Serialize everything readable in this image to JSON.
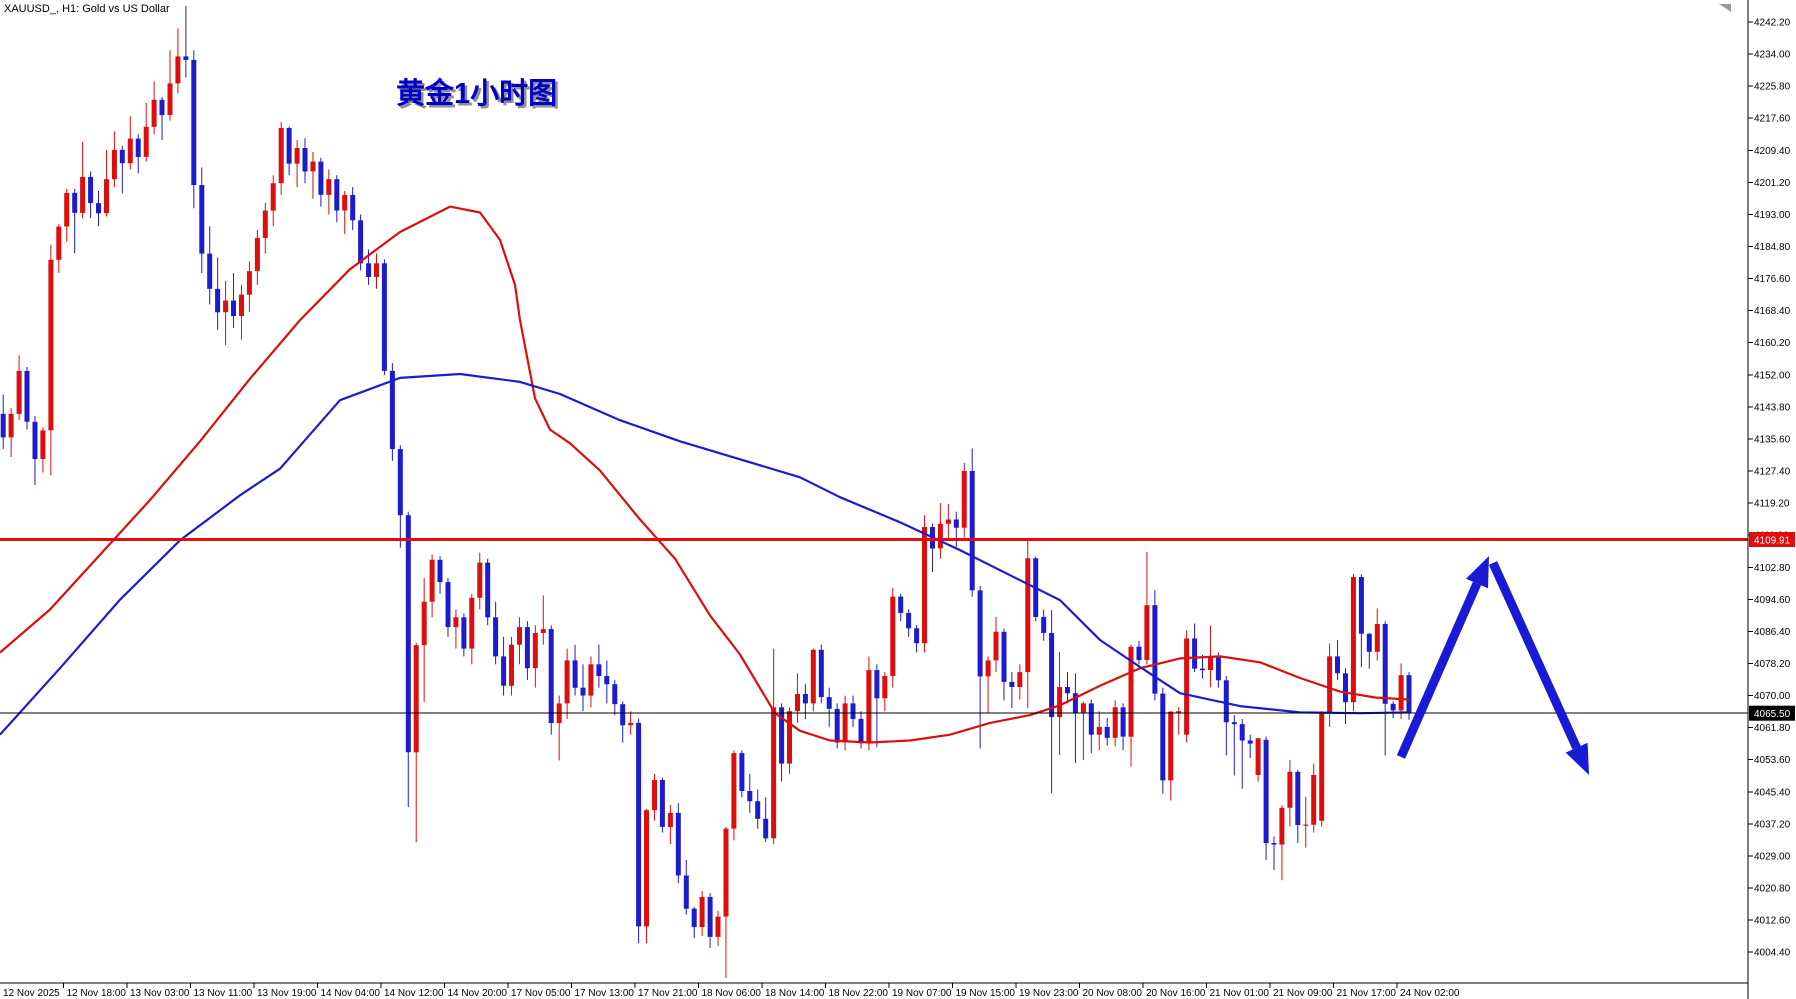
{
  "window": {
    "symbol_title": "XAUUSD_, H1:  Gold vs US Dollar"
  },
  "annotations": {
    "headline": "黄金1小时图",
    "headline_color": "#0000C8",
    "arrow_color": "#1a1ad6",
    "up_arrow": {
      "from": [
        1401,
        757
      ],
      "to": [
        1489,
        556
      ]
    },
    "down_arrow": {
      "from": [
        1493,
        563
      ],
      "to": [
        1589,
        775
      ]
    }
  },
  "price_lines": {
    "resistance": {
      "price": 4109.91,
      "label": "4109.91",
      "color": "#e00d0d"
    },
    "current": {
      "price": 4065.5,
      "label": "4065.50",
      "color": "#000000"
    }
  },
  "chart_data": {
    "type": "candlestick",
    "title": "XAUUSD H1 Gold vs US Dollar",
    "up_color": "#dd0e0e",
    "down_color": "#1c1cce",
    "ma_red_color": "#dd0e0e",
    "ma_blue_color": "#1c1cce",
    "grid": false,
    "y_axis": {
      "top_price": 4242.2,
      "step": 8.2,
      "ticks": [
        "4242.20",
        "4234.00",
        "4225.80",
        "4217.60",
        "4209.40",
        "4201.20",
        "4193.00",
        "4184.80",
        "4176.60",
        "4168.40",
        "4160.20",
        "4152.00",
        "4143.80",
        "4135.60",
        "4127.40",
        "4119.20",
        "4111.00",
        "4102.80",
        "4094.60",
        "4086.40",
        "4078.20",
        "4070.00",
        "4061.80",
        "4053.60",
        "4045.40",
        "4037.20",
        "4029.00",
        "4020.80",
        "4012.60",
        "4004.40"
      ]
    },
    "x_axis": {
      "labels": [
        "12 Nov 2025",
        "12 Nov 18:00",
        "13 Nov 03:00",
        "13 Nov 11:00",
        "13 Nov 19:00",
        "14 Nov 04:00",
        "14 Nov 12:00",
        "14 Nov 20:00",
        "17 Nov 05:00",
        "17 Nov 13:00",
        "17 Nov 21:00",
        "18 Nov 06:00",
        "18 Nov 14:00",
        "18 Nov 22:00",
        "19 Nov 07:00",
        "19 Nov 15:00",
        "19 Nov 23:00",
        "20 Nov 08:00",
        "20 Nov 16:00",
        "21 Nov 01:00",
        "21 Nov 09:00",
        "21 Nov 17:00",
        "24 Nov 02:00"
      ]
    },
    "candles": [
      [
        4142,
        4147,
        4133,
        4136
      ],
      [
        4136,
        4143.5,
        4131,
        4142
      ],
      [
        4142,
        4157,
        4140.5,
        4153
      ],
      [
        4153,
        4154,
        4138,
        4140
      ],
      [
        4140,
        4141.5,
        4123.8,
        4130.5
      ],
      [
        4130.5,
        4138.5,
        4127,
        4137.8
      ],
      [
        4137.8,
        4185.2,
        4126.3,
        4181.4
      ],
      [
        4181.4,
        4190.5,
        4178,
        4189.9
      ],
      [
        4189.9,
        4199.5,
        4186,
        4198.5
      ],
      [
        4198.5,
        4199.5,
        4183.1,
        4193.4
      ],
      [
        4193.4,
        4211.6,
        4192,
        4202.6
      ],
      [
        4202.6,
        4204,
        4192.1,
        4195.9
      ],
      [
        4195.9,
        4199,
        4190,
        4193.3
      ],
      [
        4193.3,
        4209.5,
        4192.5,
        4202
      ],
      [
        4202,
        4214.2,
        4200,
        4209.5
      ],
      [
        4209.5,
        4210.5,
        4198.4,
        4206.1
      ],
      [
        4206.1,
        4218.1,
        4204.5,
        4212.4
      ],
      [
        4212.4,
        4213.5,
        4203.5,
        4207.7
      ],
      [
        4207.7,
        4221.5,
        4206.5,
        4215.4
      ],
      [
        4215.4,
        4227,
        4213.5,
        4222.3
      ],
      [
        4222.3,
        4223,
        4212,
        4218.4
      ],
      [
        4218.4,
        4235,
        4217,
        4226.5
      ],
      [
        4226.5,
        4240.6,
        4224,
        4233.4
      ],
      [
        4233.4,
        4246.3,
        4228,
        4232.5
      ],
      [
        4232.5,
        4235,
        4194.6,
        4200.5
      ],
      [
        4200.5,
        4205,
        4178,
        4183
      ],
      [
        4183,
        4190,
        4170,
        4174
      ],
      [
        4174,
        4182,
        4163.5,
        4168
      ],
      [
        4168,
        4176,
        4159.6,
        4171
      ],
      [
        4171,
        4178,
        4164,
        4167
      ],
      [
        4167,
        4175,
        4161,
        4172.5
      ],
      [
        4172.5,
        4181,
        4168,
        4178.5
      ],
      [
        4178.5,
        4189,
        4175,
        4187
      ],
      [
        4187,
        4196,
        4183,
        4194
      ],
      [
        4194,
        4203,
        4190,
        4201
      ],
      [
        4201,
        4216.6,
        4198,
        4215.1
      ],
      [
        4215.1,
        4215.5,
        4203,
        4206
      ],
      [
        4206,
        4212,
        4200,
        4210
      ],
      [
        4210,
        4212.5,
        4201,
        4204
      ],
      [
        4204,
        4209,
        4197,
        4206.5
      ],
      [
        4206.5,
        4207.5,
        4195,
        4198
      ],
      [
        4198,
        4204.5,
        4193,
        4202
      ],
      [
        4202,
        4203,
        4191,
        4194
      ],
      [
        4194,
        4199,
        4188,
        4198
      ],
      [
        4198,
        4200,
        4189,
        4191.5
      ],
      [
        4191.5,
        4193,
        4178.7,
        4180.5
      ],
      [
        4180.5,
        4184,
        4175,
        4177
      ],
      [
        4177,
        4183,
        4174,
        4180.5
      ],
      [
        4180.5,
        4181.5,
        4152,
        4153
      ],
      [
        4153,
        4155,
        4130,
        4133
      ],
      [
        4133,
        4134,
        4107.8,
        4116.1
      ],
      [
        4116.1,
        4117,
        4041.5,
        4055.5
      ],
      [
        4055.5,
        4083.5,
        4032.5,
        4082.9
      ],
      [
        4082.9,
        4100,
        4068.4,
        4094
      ],
      [
        4094,
        4106,
        4090,
        4104.7
      ],
      [
        4104.7,
        4105.6,
        4096,
        4099
      ],
      [
        4099,
        4100,
        4085,
        4087.5
      ],
      [
        4087.5,
        4092,
        4082,
        4090
      ],
      [
        4090,
        4091,
        4080,
        4082
      ],
      [
        4082,
        4096,
        4078,
        4095
      ],
      [
        4095,
        4106.5,
        4092,
        4104
      ],
      [
        4104,
        4105,
        4088,
        4090
      ],
      [
        4090,
        4094,
        4078,
        4080
      ],
      [
        4080,
        4085,
        4070,
        4072.5
      ],
      [
        4072.5,
        4085,
        4070,
        4083
      ],
      [
        4083,
        4090,
        4078,
        4087.5
      ],
      [
        4087.5,
        4089,
        4074,
        4077
      ],
      [
        4077,
        4088,
        4072,
        4086
      ],
      [
        4086,
        4095.6,
        4083,
        4087
      ],
      [
        4087,
        4088,
        4060,
        4063
      ],
      [
        4063,
        4070,
        4053.4,
        4068
      ],
      [
        4068,
        4082,
        4064,
        4079
      ],
      [
        4079,
        4083,
        4070,
        4072
      ],
      [
        4072,
        4078,
        4066,
        4070
      ],
      [
        4070,
        4080,
        4067,
        4078
      ],
      [
        4078,
        4083,
        4072,
        4075
      ],
      [
        4075,
        4079,
        4068,
        4072.9
      ],
      [
        4072.9,
        4074,
        4065,
        4067.8
      ],
      [
        4067.8,
        4068.5,
        4058,
        4062.4
      ],
      [
        4062.4,
        4066,
        4060,
        4063
      ],
      [
        4063,
        4064,
        4006.7,
        4011
      ],
      [
        4011,
        4041,
        4006.7,
        4040.7
      ],
      [
        4040.7,
        4050,
        4038,
        4048.4
      ],
      [
        4048.4,
        4049,
        4035,
        4036.4
      ],
      [
        4036.4,
        4042,
        4032,
        4040
      ],
      [
        4040,
        4042.5,
        4022,
        4024
      ],
      [
        4024,
        4028,
        4014,
        4015.5
      ],
      [
        4015.5,
        4016,
        4008,
        4010.8
      ],
      [
        4010.8,
        4020,
        4008.5,
        4018.5
      ],
      [
        4018.5,
        4019.5,
        4005.5,
        4008.3
      ],
      [
        4008.3,
        4015,
        4006,
        4013.5
      ],
      [
        4013.5,
        4036.4,
        3997.8,
        4036
      ],
      [
        4036,
        4056,
        4033,
        4055.3
      ],
      [
        4055.3,
        4056,
        4044,
        4045.6
      ],
      [
        4045.6,
        4050,
        4040,
        4043
      ],
      [
        4043,
        4046,
        4036,
        4038.5
      ],
      [
        4038.5,
        4044,
        4032.6,
        4033.5
      ],
      [
        4033.5,
        4082,
        4032,
        4067
      ],
      [
        4067,
        4068,
        4048,
        4052.6
      ],
      [
        4052.6,
        4067,
        4050,
        4066
      ],
      [
        4066,
        4075.7,
        4063,
        4070.4
      ],
      [
        4070.4,
        4073,
        4064,
        4068
      ],
      [
        4068,
        4082,
        4066,
        4081.7
      ],
      [
        4081.7,
        4083,
        4068,
        4069.6
      ],
      [
        4069.6,
        4072,
        4062,
        4066.6
      ],
      [
        4066.6,
        4068,
        4056.5,
        4058
      ],
      [
        4058,
        4070,
        4056,
        4068
      ],
      [
        4068,
        4070,
        4062,
        4064
      ],
      [
        4064,
        4066,
        4056.5,
        4057.8
      ],
      [
        4057.8,
        4080,
        4056,
        4076.5
      ],
      [
        4076.5,
        4078,
        4056.8,
        4069.3
      ],
      [
        4069.3,
        4076,
        4066,
        4075
      ],
      [
        4075,
        4097.5,
        4072,
        4095.3
      ],
      [
        4095.3,
        4096,
        4089,
        4091.1
      ],
      [
        4091.1,
        4092,
        4085,
        4087.2
      ],
      [
        4087.2,
        4088,
        4081,
        4083.4
      ],
      [
        4083.4,
        4116.1,
        4081,
        4113.1
      ],
      [
        4113.1,
        4114,
        4101.6,
        4107.6
      ],
      [
        4107.6,
        4119.2,
        4105,
        4113.9
      ],
      [
        4113.9,
        4119,
        4110,
        4115
      ],
      [
        4115,
        4117,
        4108,
        4112.9
      ],
      [
        4112.9,
        4129.5,
        4110.4,
        4127.4
      ],
      [
        4127.4,
        4133.2,
        4095.3,
        4096.9
      ],
      [
        4096.9,
        4098,
        4056.5,
        4074.9
      ],
      [
        4074.9,
        4080,
        4065.5,
        4079
      ],
      [
        4079,
        4090.1,
        4076,
        4086.3
      ],
      [
        4086.3,
        4087.1,
        4068.8,
        4073.5
      ],
      [
        4073.5,
        4076,
        4066.8,
        4072.2
      ],
      [
        4072.2,
        4078,
        4069,
        4076
      ],
      [
        4076,
        4109.8,
        4066.8,
        4105.1
      ],
      [
        4105.1,
        4105.5,
        4089,
        4090.1
      ],
      [
        4090.1,
        4092,
        4084,
        4086
      ],
      [
        4086,
        4091.8,
        4045,
        4064.5
      ],
      [
        4064.5,
        4081.2,
        4054.8,
        4072.2
      ],
      [
        4072.2,
        4076,
        4068,
        4070.6
      ],
      [
        4070.6,
        4075.7,
        4052.7,
        4065.5
      ],
      [
        4065.7,
        4068.5,
        4053.5,
        4068
      ],
      [
        4068,
        4069,
        4055.3,
        4060
      ],
      [
        4060,
        4066,
        4056,
        4062
      ],
      [
        4062,
        4064.3,
        4057.2,
        4059.2
      ],
      [
        4059.2,
        4068.8,
        4057,
        4067
      ],
      [
        4067,
        4068,
        4056,
        4059.5
      ],
      [
        4059.5,
        4083,
        4051.8,
        4082.5
      ],
      [
        4082.5,
        4084,
        4078,
        4079.1
      ],
      [
        4079.1,
        4106.7,
        4078,
        4093.1
      ],
      [
        4093.1,
        4096.9,
        4068.8,
        4070.5
      ],
      [
        4070.5,
        4072,
        4044.9,
        4048.3
      ],
      [
        4048.3,
        4066,
        4043.2,
        4065.9
      ],
      [
        4065.9,
        4067,
        4060,
        4066
      ],
      [
        4060,
        4086.7,
        4058,
        4084.6
      ],
      [
        4084.6,
        4088.4,
        4076,
        4076.9
      ],
      [
        4076.9,
        4080.4,
        4074.3,
        4076.5
      ],
      [
        4076.5,
        4087.9,
        4072.1,
        4079.9
      ],
      [
        4079.9,
        4081,
        4072,
        4073.9
      ],
      [
        4073.9,
        4075,
        4054.7,
        4063.2
      ],
      [
        4063.2,
        4065,
        4049.6,
        4062.7
      ],
      [
        4062.7,
        4064,
        4046.2,
        4058.5
      ],
      [
        4058.5,
        4060,
        4054,
        4057.7
      ],
      [
        4049.7,
        4059.1,
        4048,
        4059.1
      ],
      [
        4058.7,
        4059.5,
        4028,
        4032.3
      ],
      [
        4032.3,
        4034,
        4025.4,
        4031.9
      ],
      [
        4031.9,
        4042,
        4022.8,
        4041.3
      ],
      [
        4041.3,
        4053.5,
        4036.5,
        4050.5
      ],
      [
        4050.5,
        4051,
        4032.3,
        4036.9
      ],
      [
        4036.9,
        4044.1,
        4031.1,
        4037
      ],
      [
        4037,
        4052.6,
        4035,
        4049.7
      ],
      [
        4038,
        4066,
        4036.5,
        4065.4
      ],
      [
        4065.4,
        4083.3,
        4062,
        4080
      ],
      [
        4080,
        4084.2,
        4074,
        4075.7
      ],
      [
        4075.7,
        4077,
        4062.7,
        4068.3
      ],
      [
        4068.3,
        4101.1,
        4066,
        4100.3
      ],
      [
        4100.3,
        4101,
        4077.3,
        4085.8
      ],
      [
        4085.8,
        4086,
        4076.9,
        4081.2
      ],
      [
        4081.2,
        4092.3,
        4079,
        4088.3
      ],
      [
        4088.3,
        4089,
        4054.7,
        4067.9
      ],
      [
        4067.9,
        4068.5,
        4064.2,
        4066.2
      ],
      [
        4066.2,
        4078.2,
        4064,
        4075.2
      ],
      [
        4075.2,
        4076,
        4063.8,
        4065.5
      ]
    ],
    "ma_red": [
      [
        0,
        4081
      ],
      [
        50,
        4092
      ],
      [
        100,
        4106
      ],
      [
        150,
        4120
      ],
      [
        200,
        4135
      ],
      [
        250,
        4151
      ],
      [
        300,
        4166
      ],
      [
        350,
        4179
      ],
      [
        400,
        4188.5
      ],
      [
        450,
        4195
      ],
      [
        480,
        4193.5
      ],
      [
        500,
        4186.5
      ],
      [
        515,
        4175
      ],
      [
        520,
        4166
      ],
      [
        535,
        4146
      ],
      [
        550,
        4138
      ],
      [
        570,
        4134.5
      ],
      [
        600,
        4127.5
      ],
      [
        640,
        4115
      ],
      [
        675,
        4105
      ],
      [
        710,
        4090.5
      ],
      [
        740,
        4080.5
      ],
      [
        775,
        4065.5
      ],
      [
        800,
        4061
      ],
      [
        830,
        4058.5
      ],
      [
        870,
        4058
      ],
      [
        910,
        4058.5
      ],
      [
        950,
        4060
      ],
      [
        990,
        4063
      ],
      [
        1030,
        4065
      ],
      [
        1060,
        4067.5
      ],
      [
        1100,
        4072.5
      ],
      [
        1140,
        4077
      ],
      [
        1180,
        4079.5
      ],
      [
        1220,
        4080
      ],
      [
        1260,
        4078.5
      ],
      [
        1300,
        4074.5
      ],
      [
        1340,
        4071
      ],
      [
        1375,
        4069.5
      ],
      [
        1409,
        4069
      ]
    ],
    "ma_blue": [
      [
        0,
        4060
      ],
      [
        60,
        4077
      ],
      [
        120,
        4094.5
      ],
      [
        180,
        4109.7
      ],
      [
        240,
        4121.2
      ],
      [
        280,
        4128
      ],
      [
        340,
        4145.5
      ],
      [
        400,
        4151.2
      ],
      [
        460,
        4152.2
      ],
      [
        520,
        4150.2
      ],
      [
        560,
        4147.1
      ],
      [
        620,
        4140.4
      ],
      [
        680,
        4135
      ],
      [
        740,
        4130.4
      ],
      [
        800,
        4125.8
      ],
      [
        840,
        4120.7
      ],
      [
        900,
        4114.3
      ],
      [
        960,
        4107.2
      ],
      [
        1020,
        4099.5
      ],
      [
        1060,
        4094.4
      ],
      [
        1100,
        4084.2
      ],
      [
        1140,
        4077.3
      ],
      [
        1180,
        4070.6
      ],
      [
        1240,
        4067.3
      ],
      [
        1300,
        4065.7
      ],
      [
        1360,
        4065.5
      ],
      [
        1409,
        4065.7
      ]
    ]
  }
}
